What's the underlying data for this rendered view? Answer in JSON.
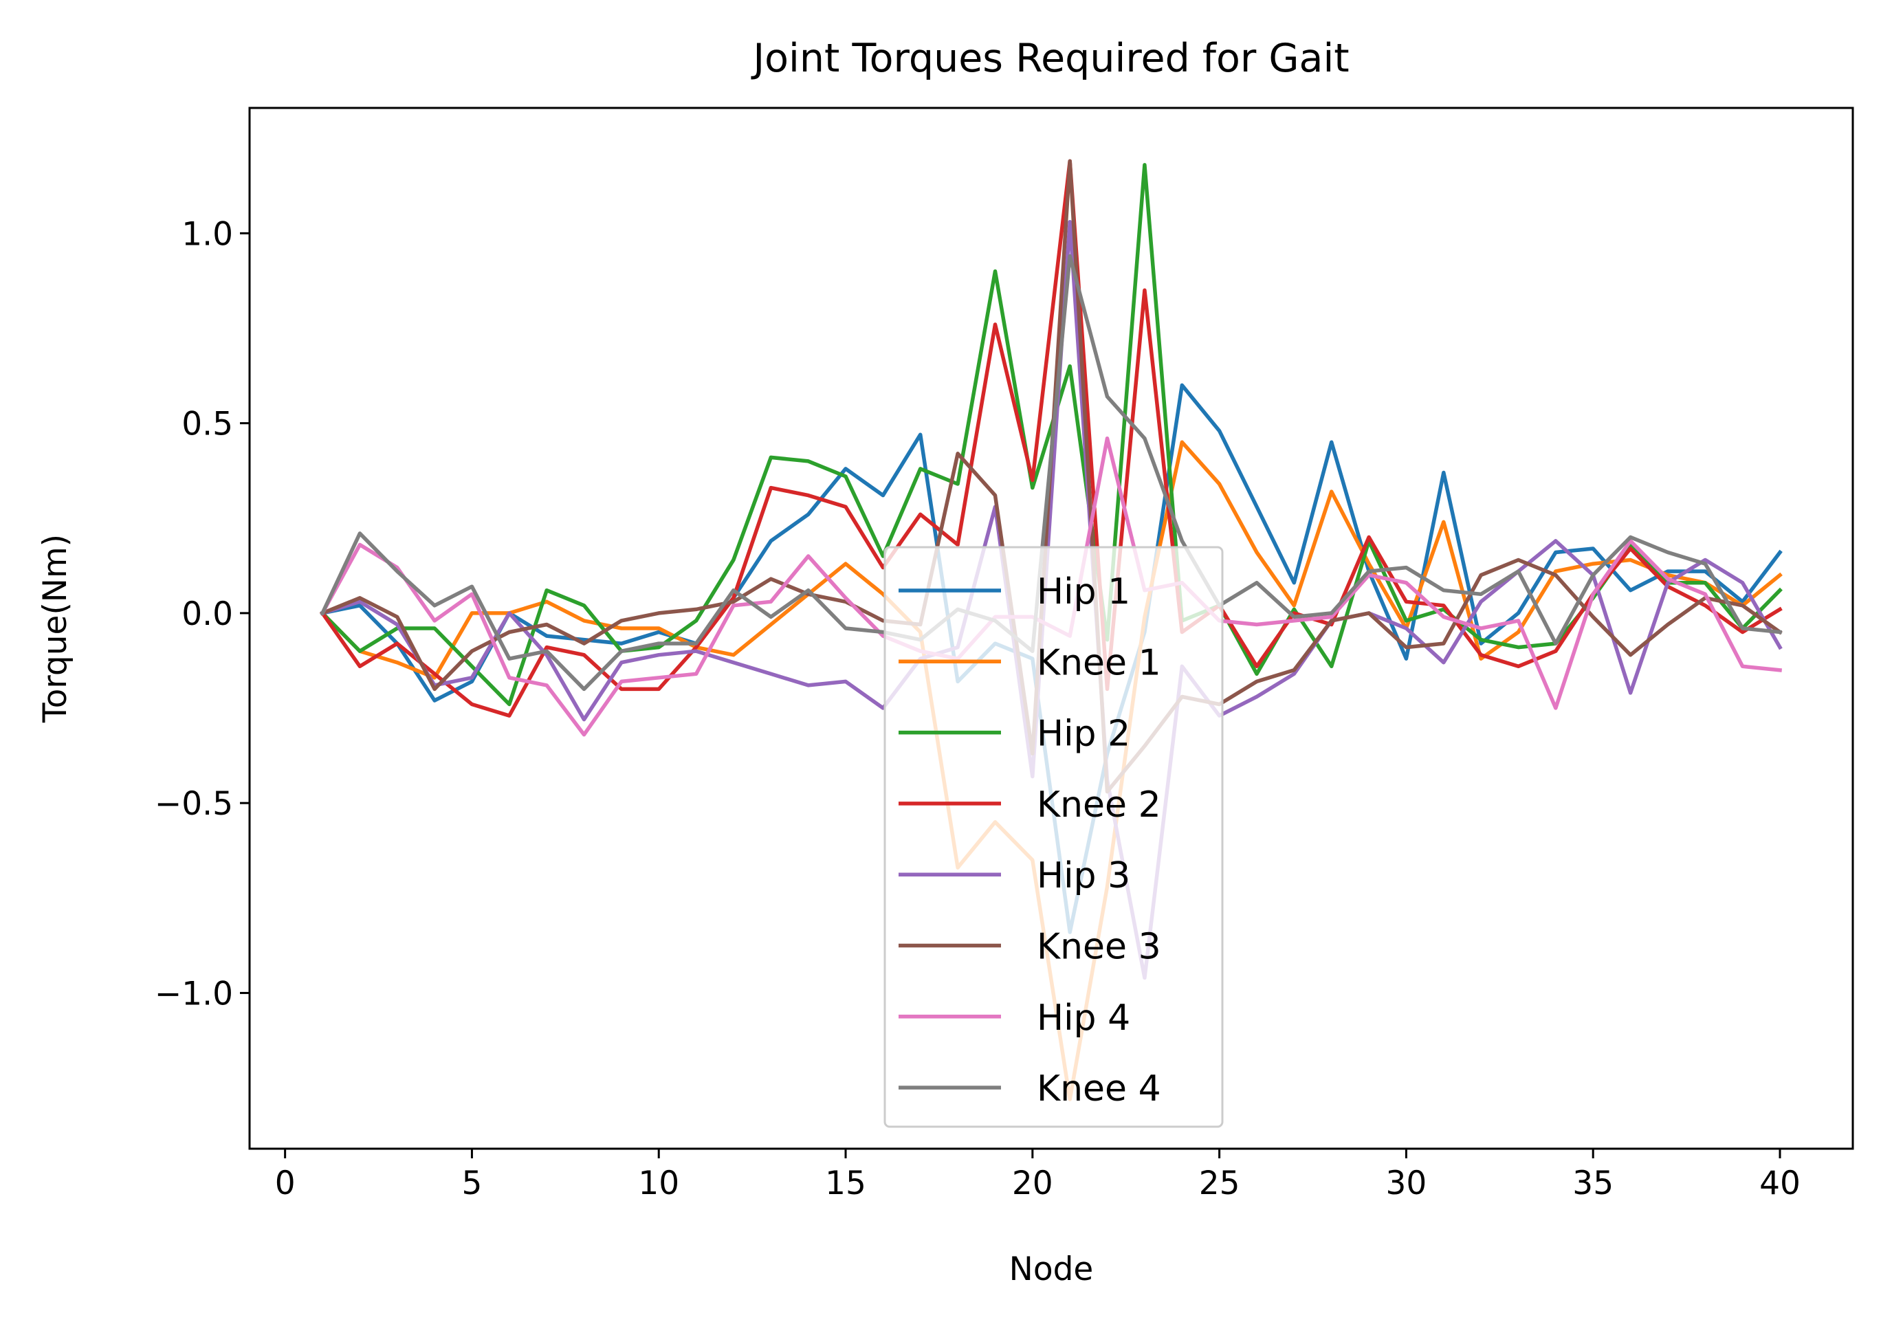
{
  "chart_data": {
    "type": "line",
    "title": "Joint Torques Required for Gait",
    "xlabel": "Node",
    "ylabel": "Torque(Nm)",
    "xlim": [
      -0.95,
      41.95
    ],
    "ylim": [
      -1.41,
      1.33
    ],
    "xticks": [
      0,
      5,
      10,
      15,
      20,
      25,
      30,
      35,
      40
    ],
    "yticks": [
      1.0,
      0.5,
      0.0,
      -0.5,
      -1.0
    ],
    "ytick_labels": [
      "1.0",
      "0.5",
      "0.0",
      "−0.5",
      "−1.0"
    ],
    "grid": false,
    "legend_position": "lower center",
    "x": [
      1,
      2,
      3,
      4,
      5,
      6,
      7,
      8,
      9,
      10,
      11,
      12,
      13,
      14,
      15,
      16,
      17,
      18,
      19,
      20,
      21,
      22,
      23,
      24,
      25,
      26,
      27,
      28,
      29,
      30,
      31,
      32,
      33,
      34,
      35,
      36,
      37,
      38,
      39,
      40
    ],
    "series": [
      {
        "name": "Hip 1",
        "color": "#1f77b4",
        "values": [
          0.0,
          0.02,
          -0.08,
          -0.23,
          -0.18,
          0.0,
          -0.06,
          -0.07,
          -0.08,
          -0.05,
          -0.08,
          0.04,
          0.19,
          0.26,
          0.38,
          0.31,
          0.47,
          -0.18,
          -0.08,
          -0.12,
          -0.84,
          -0.37,
          -0.05,
          0.6,
          0.48,
          0.28,
          0.08,
          0.45,
          0.11,
          -0.12,
          0.37,
          -0.08,
          0.0,
          0.16,
          0.17,
          0.06,
          0.11,
          0.11,
          0.03,
          0.16
        ]
      },
      {
        "name": "Knee 1",
        "color": "#ff7f0e",
        "values": [
          0.0,
          -0.1,
          -0.13,
          -0.17,
          0.0,
          0.0,
          0.03,
          -0.02,
          -0.04,
          -0.04,
          -0.09,
          -0.11,
          -0.03,
          0.05,
          0.13,
          0.05,
          -0.05,
          -0.67,
          -0.55,
          -0.65,
          -1.28,
          -0.72,
          -0.01,
          0.45,
          0.34,
          0.16,
          0.02,
          0.32,
          0.13,
          -0.04,
          0.24,
          -0.12,
          -0.05,
          0.11,
          0.13,
          0.14,
          0.1,
          0.08,
          0.02,
          0.1
        ]
      },
      {
        "name": "Hip 2",
        "color": "#2ca02c",
        "values": [
          0.0,
          -0.1,
          -0.04,
          -0.04,
          -0.14,
          -0.24,
          0.06,
          0.02,
          -0.1,
          -0.09,
          -0.02,
          0.14,
          0.41,
          0.4,
          0.36,
          0.15,
          0.38,
          0.34,
          0.9,
          0.33,
          0.65,
          -0.07,
          1.18,
          -0.02,
          0.02,
          -0.16,
          0.01,
          -0.14,
          0.19,
          -0.02,
          0.01,
          -0.07,
          -0.09,
          -0.08,
          0.04,
          0.18,
          0.08,
          0.08,
          -0.04,
          0.06
        ]
      },
      {
        "name": "Knee 2",
        "color": "#d62728",
        "values": [
          0.0,
          -0.14,
          -0.08,
          -0.16,
          -0.24,
          -0.27,
          -0.09,
          -0.11,
          -0.2,
          -0.2,
          -0.09,
          0.04,
          0.33,
          0.31,
          0.28,
          0.12,
          0.26,
          0.18,
          0.76,
          0.35,
          1.19,
          -0.2,
          0.85,
          -0.05,
          0.02,
          -0.14,
          0.0,
          -0.03,
          0.2,
          0.03,
          0.02,
          -0.11,
          -0.14,
          -0.1,
          0.05,
          0.17,
          0.07,
          0.02,
          -0.05,
          0.01
        ]
      },
      {
        "name": "Hip 3",
        "color": "#9467bd",
        "values": [
          0.0,
          0.03,
          -0.03,
          -0.19,
          -0.17,
          0.0,
          -0.11,
          -0.28,
          -0.13,
          -0.11,
          -0.1,
          -0.13,
          -0.16,
          -0.19,
          -0.18,
          -0.25,
          -0.12,
          -0.09,
          0.28,
          -0.43,
          1.03,
          -0.44,
          -0.96,
          -0.14,
          -0.27,
          -0.22,
          -0.16,
          -0.02,
          0.0,
          -0.04,
          -0.13,
          0.03,
          0.11,
          0.19,
          0.1,
          -0.21,
          0.08,
          0.14,
          0.08,
          -0.09
        ]
      },
      {
        "name": "Knee 3",
        "color": "#8c564b",
        "values": [
          0.0,
          0.04,
          -0.01,
          -0.2,
          -0.1,
          -0.05,
          -0.03,
          -0.08,
          -0.02,
          0.0,
          0.01,
          0.03,
          0.09,
          0.05,
          0.03,
          -0.02,
          -0.03,
          0.42,
          0.31,
          -0.37,
          1.19,
          -0.47,
          -0.35,
          -0.22,
          -0.24,
          -0.18,
          -0.15,
          -0.02,
          0.0,
          -0.09,
          -0.08,
          0.1,
          0.14,
          0.1,
          -0.01,
          -0.11,
          -0.03,
          0.04,
          0.02,
          -0.05
        ]
      },
      {
        "name": "Hip 4",
        "color": "#e377c2",
        "values": [
          0.0,
          0.18,
          0.12,
          -0.02,
          0.05,
          -0.17,
          -0.19,
          -0.32,
          -0.18,
          -0.17,
          -0.16,
          0.02,
          0.03,
          0.15,
          0.04,
          -0.06,
          -0.1,
          -0.12,
          -0.01,
          -0.01,
          -0.06,
          0.46,
          0.06,
          0.08,
          -0.02,
          -0.03,
          -0.02,
          -0.01,
          0.1,
          0.08,
          -0.01,
          -0.04,
          -0.02,
          -0.25,
          0.05,
          0.19,
          0.09,
          0.05,
          -0.14,
          -0.15
        ]
      },
      {
        "name": "Knee 4",
        "color": "#7f7f7f",
        "values": [
          0.0,
          0.21,
          0.11,
          0.02,
          0.07,
          -0.12,
          -0.1,
          -0.2,
          -0.1,
          -0.08,
          -0.08,
          0.06,
          -0.01,
          0.06,
          -0.04,
          -0.05,
          -0.07,
          0.01,
          -0.02,
          -0.1,
          0.94,
          0.57,
          0.46,
          0.19,
          0.02,
          0.08,
          -0.01,
          0.0,
          0.11,
          0.12,
          0.06,
          0.05,
          0.11,
          -0.08,
          0.1,
          0.2,
          0.16,
          0.13,
          -0.04,
          -0.05
        ]
      }
    ]
  }
}
